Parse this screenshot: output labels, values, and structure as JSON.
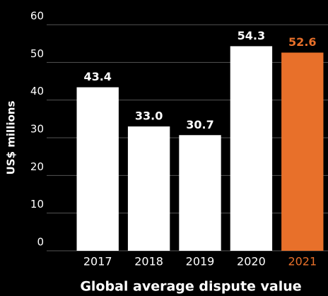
{
  "chart_data": {
    "type": "bar",
    "title": "Global average dispute value",
    "y_label": "US$ millions",
    "categories": [
      "2017",
      "2018",
      "2019",
      "2020",
      "2021"
    ],
    "values": [
      43.4,
      33.0,
      30.7,
      54.3,
      52.6
    ],
    "value_labels": [
      "43.4",
      "33.0",
      "30.7",
      "54.3",
      "52.6"
    ],
    "colors": [
      "#ffffff",
      "#ffffff",
      "#ffffff",
      "#ffffff",
      "#e8702a"
    ],
    "ylim": [
      0,
      60
    ],
    "yticks": [
      0,
      10,
      20,
      30,
      40,
      50,
      60
    ],
    "grid": true
  }
}
